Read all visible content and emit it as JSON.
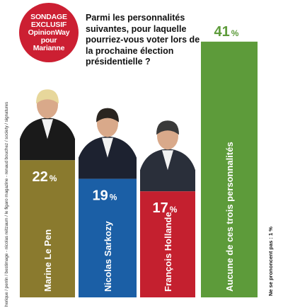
{
  "badge": {
    "line1": "SONDAGE",
    "line2": "EXCLUSIF",
    "line3": "OpinionWay",
    "line4": "pour",
    "line5": "Marianne"
  },
  "question": "Parmi les personnalités suivantes, pour laquelle pourriez-vous voter lors de la prochaine élection présidentielle ?",
  "credits": "herique / perrin / bestimage - nicolas reitzaum / le figaro magazine - renaud bouchez / society / signatures",
  "note": "Ne se prononcent pas : 1 %",
  "colors": {
    "le_pen": "#8a7a2e",
    "sarkozy": "#1b5fa6",
    "hollande": "#c4202f",
    "aucune": "#5d9b3a",
    "badge": "#cc1f32"
  },
  "chart_data": {
    "type": "bar",
    "categories": [
      "Marine Le Pen",
      "Nicolas Sarkozy",
      "François Hollande",
      "Aucune de ces trois personnalités"
    ],
    "values": [
      22,
      19,
      17,
      41
    ],
    "value_labels": [
      "22",
      "19",
      "17",
      "41"
    ],
    "unit": "%",
    "ylim": [
      0,
      42
    ]
  }
}
